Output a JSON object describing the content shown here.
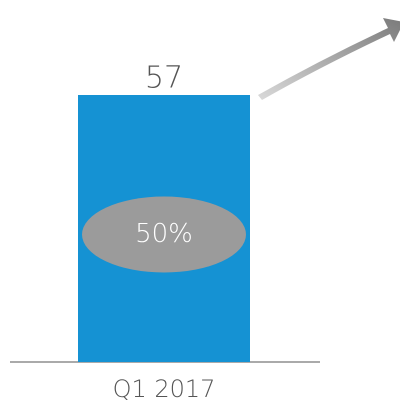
{
  "chart_data": {
    "type": "bar",
    "categories": [
      "Q1 2017"
    ],
    "values": [
      57
    ],
    "color": "#1592d3",
    "annotation": "50%",
    "annotation_color": "#9b9b9b"
  }
}
